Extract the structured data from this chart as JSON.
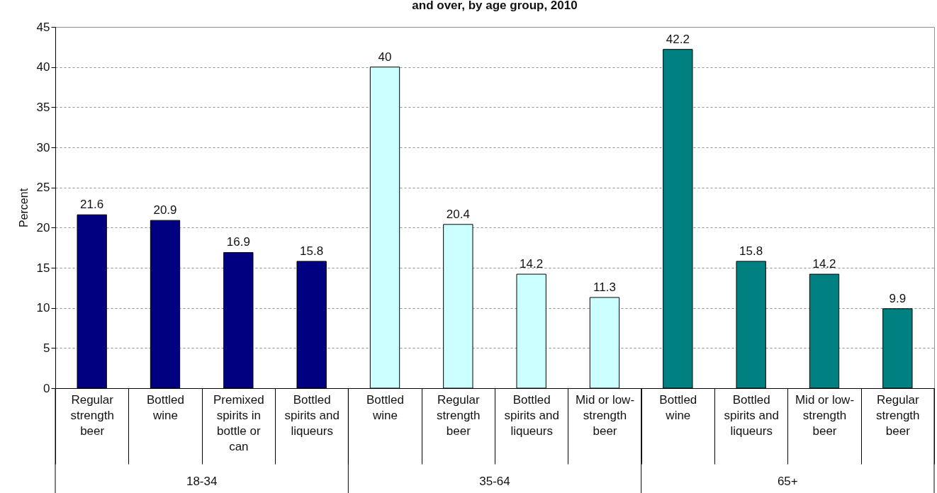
{
  "chart_data": {
    "type": "bar",
    "title": "and over, by age group, 2010",
    "ylabel": "Percent",
    "categories": [
      "Regular strength beer",
      "Bottled wine",
      "Premixed spirits in bottle or can",
      "Bottled spirits and liqueurs",
      "Bottled wine",
      "Regular strength beer",
      "Bottled spirits and liqueurs",
      "Mid or low-strength beer",
      "Bottled wine",
      "Bottled spirits and liqueurs",
      "Mid or low-strength beer",
      "Regular strength beer"
    ],
    "values": [
      21.6,
      20.9,
      16.9,
      15.8,
      40,
      20.4,
      14.2,
      11.3,
      42.2,
      15.8,
      14.2,
      9.9
    ],
    "colors": [
      "#000080",
      "#000080",
      "#000080",
      "#000080",
      "#ccffff",
      "#ccffff",
      "#ccffff",
      "#ccffff",
      "#008080",
      "#008080",
      "#008080",
      "#008080"
    ],
    "annotations": [
      "18-34",
      "35-64",
      "65+"
    ],
    "ylim": [
      0,
      45
    ],
    "yticks": [
      0,
      5,
      10,
      15,
      20,
      25,
      30,
      35,
      40,
      45
    ],
    "grid": "y",
    "data_labels": true
  }
}
